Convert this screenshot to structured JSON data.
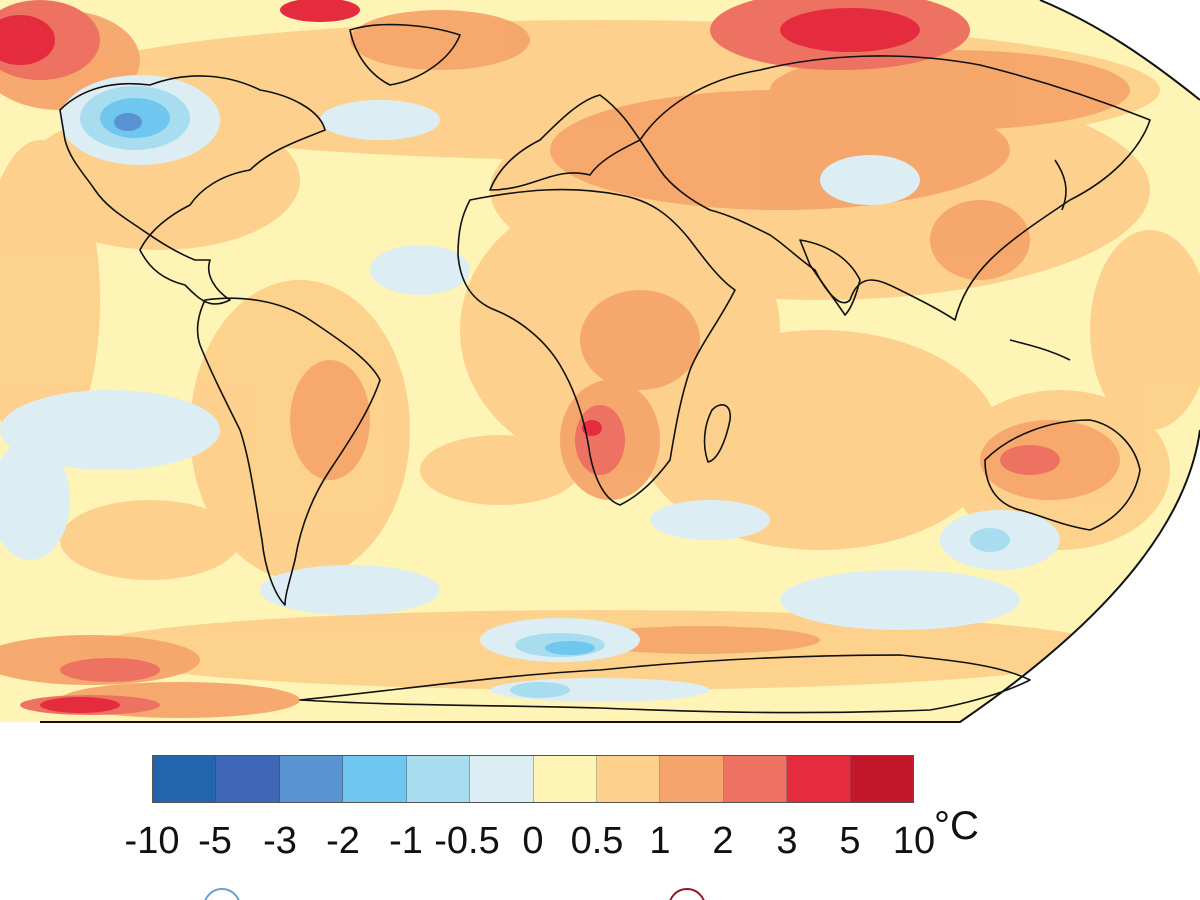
{
  "legend": {
    "unit": "°C",
    "bins": [
      {
        "color": "#2166ac"
      },
      {
        "color": "#3f67b8"
      },
      {
        "color": "#5a93d2"
      },
      {
        "color": "#6fc6ee"
      },
      {
        "color": "#a8dcef"
      },
      {
        "color": "#dceef3"
      },
      {
        "color": "#fdf4b6"
      },
      {
        "color": "#fdd08b"
      },
      {
        "color": "#f5a56b"
      },
      {
        "color": "#ee7261"
      },
      {
        "color": "#e52c3e"
      },
      {
        "color": "#c2172b"
      }
    ],
    "ticks": [
      "-10",
      "-5",
      "-3",
      "-2",
      "-1",
      "-0.5",
      "0",
      "0.5",
      "1",
      "2",
      "3",
      "5",
      "10"
    ]
  },
  "map": {
    "projection": "Robinson",
    "ocean_base_color": "#fdf4b6",
    "outline_color": "#111111",
    "icons": [
      "cool-circle-icon",
      "warm-circle-icon"
    ]
  }
}
